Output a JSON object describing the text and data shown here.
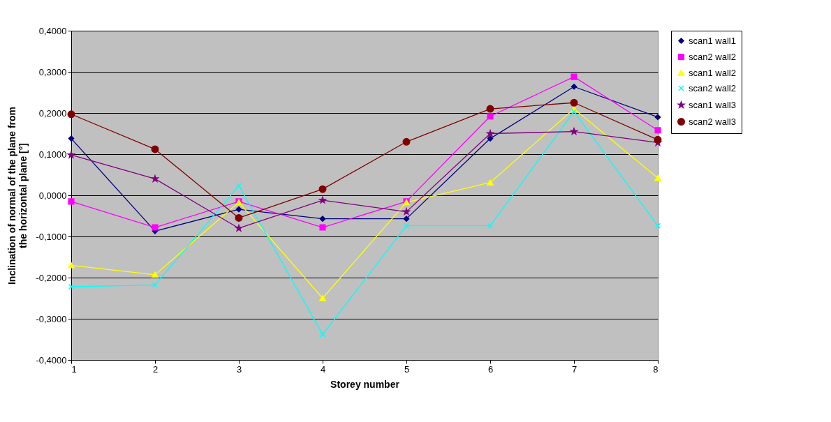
{
  "chart_data": {
    "type": "line",
    "xlabel": "Storey number",
    "ylabel": "Inclination of normal of the plane from the horizontal plane [°]",
    "x": [
      1,
      2,
      3,
      4,
      5,
      6,
      7,
      8
    ],
    "xlim": [
      1,
      8
    ],
    "xticks": [
      1,
      2,
      3,
      4,
      5,
      6,
      7,
      8
    ],
    "ylim": [
      -0.4,
      0.4
    ],
    "yticks": [
      {
        "value": -0.4,
        "label": "-0,4000"
      },
      {
        "value": -0.3,
        "label": "-0,3000"
      },
      {
        "value": -0.2,
        "label": "-0,2000"
      },
      {
        "value": -0.1,
        "label": "-0,1000"
      },
      {
        "value": 0,
        "label": "0,0000"
      },
      {
        "value": 0.1,
        "label": "0,1000"
      },
      {
        "value": 0.2,
        "label": "0,2000"
      },
      {
        "value": 0.3,
        "label": "0,3000"
      },
      {
        "value": 0.4,
        "label": "0,4000"
      }
    ],
    "grid": "y",
    "legend": "right",
    "series": [
      {
        "name": "scan1 wall1",
        "color": "#000080",
        "marker": "diamond",
        "values": [
          0.138,
          -0.087,
          -0.034,
          -0.057,
          -0.057,
          0.138,
          0.264,
          0.19
        ]
      },
      {
        "name": "scan2 wall2",
        "color": "#ff00ff",
        "marker": "square",
        "values": [
          -0.015,
          -0.078,
          -0.015,
          -0.078,
          -0.015,
          0.192,
          0.288,
          0.158
        ]
      },
      {
        "name": "scan1 wall2",
        "color": "#ffff00",
        "marker": "triangle",
        "values": [
          -0.17,
          -0.193,
          -0.017,
          -0.25,
          -0.017,
          0.031,
          0.21,
          0.042
        ]
      },
      {
        "name": "scan2 wall2",
        "color": "#00ffff",
        "marker": "cross",
        "values": [
          -0.222,
          -0.218,
          0.023,
          -0.338,
          -0.074,
          -0.074,
          0.203,
          -0.074
        ]
      },
      {
        "name": "scan1 wall3",
        "color": "#800080",
        "marker": "star",
        "values": [
          0.098,
          0.04,
          -0.08,
          -0.012,
          -0.04,
          0.15,
          0.155,
          0.128
        ]
      },
      {
        "name": "scan2 wall3",
        "color": "#800000",
        "marker": "circle",
        "values": [
          0.197,
          0.112,
          -0.055,
          0.015,
          0.13,
          0.21,
          0.225,
          0.135
        ]
      }
    ]
  }
}
